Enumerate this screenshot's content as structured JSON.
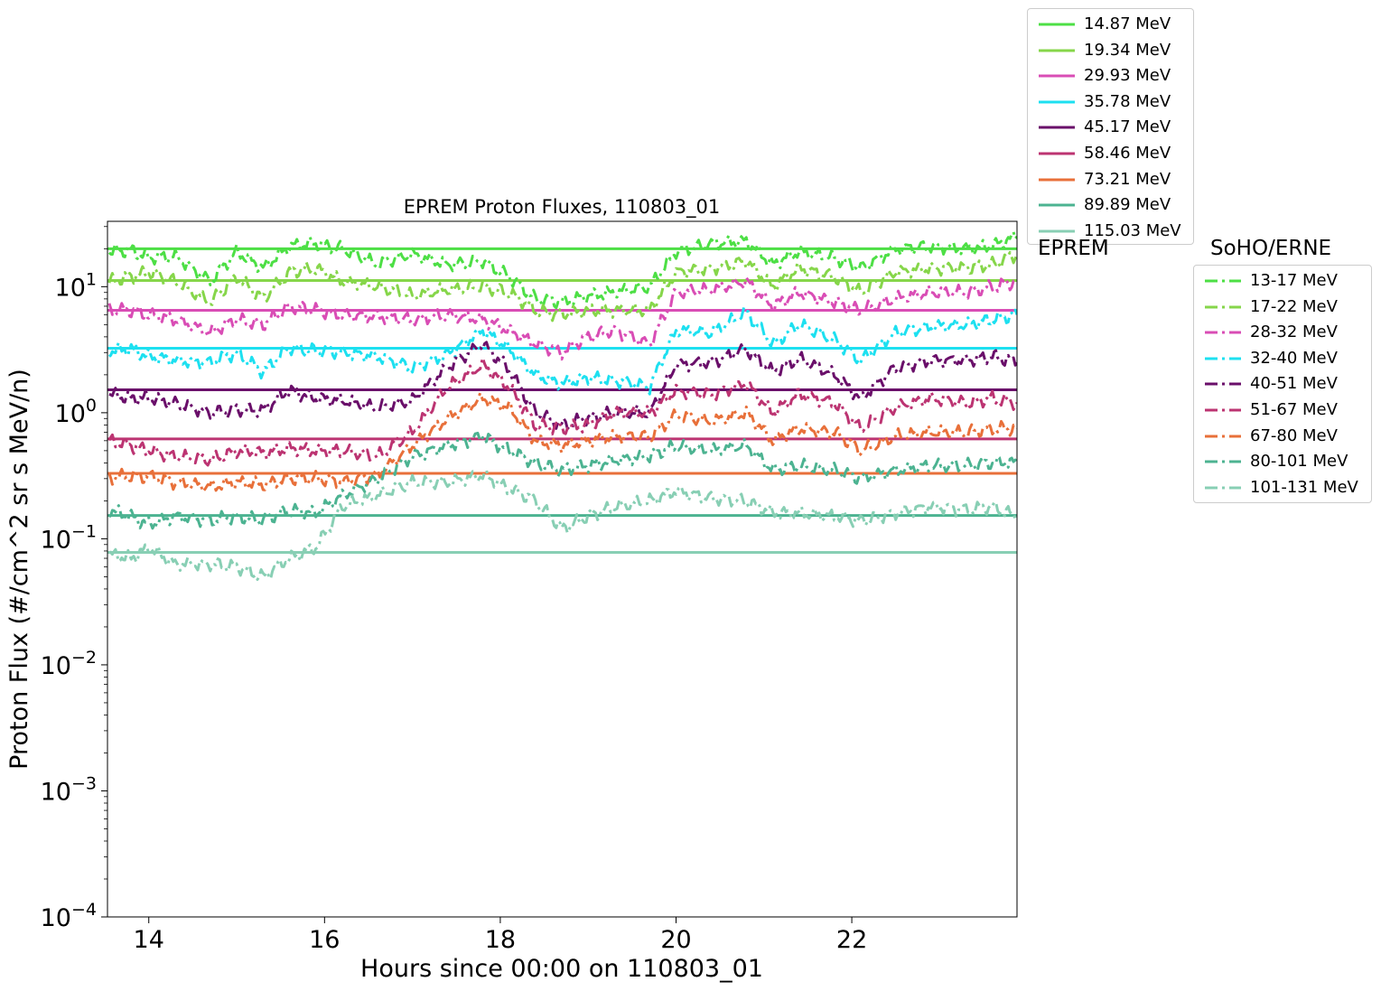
{
  "chart_data": {
    "type": "line",
    "title": "EPREM Proton Fluxes, 110803_01",
    "xlabel": "Hours since 00:00 on 110803_01",
    "ylabel": "Proton Flux (#/cm^2 sr s MeV/n)",
    "xlim": [
      13.53,
      23.88
    ],
    "ylim": [
      0.0001,
      33
    ],
    "yscale": "log",
    "grid": false,
    "x_ticks": [
      14,
      16,
      18,
      20,
      22
    ],
    "y_ticks": [
      {
        "value": 0.0001,
        "base": "10",
        "exp": "−4"
      },
      {
        "value": 0.001,
        "base": "10",
        "exp": "−3"
      },
      {
        "value": 0.01,
        "base": "10",
        "exp": "−2"
      },
      {
        "value": 0.1,
        "base": "10",
        "exp": "−1"
      },
      {
        "value": 1,
        "base": "10",
        "exp": "0"
      },
      {
        "value": 10,
        "base": "10",
        "exp": "1"
      }
    ],
    "eprem_legend_title": "EPREM",
    "erne_legend_title": "SoHO/ERNE",
    "eprem_series": [
      {
        "name": "14.87 MeV",
        "color": "#4ddf45",
        "value": 20.0
      },
      {
        "name": "19.34 MeV",
        "color": "#86d64a",
        "value": 11.2
      },
      {
        "name": "29.93 MeV",
        "color": "#d94db5",
        "value": 6.5
      },
      {
        "name": "35.78 MeV",
        "color": "#1de0f0",
        "value": 3.25
      },
      {
        "name": "45.17 MeV",
        "color": "#6a0f6a",
        "value": 1.52
      },
      {
        "name": "58.46 MeV",
        "color": "#bc3472",
        "value": 0.62
      },
      {
        "name": "73.21 MeV",
        "color": "#e8703a",
        "value": 0.33
      },
      {
        "name": "89.89 MeV",
        "color": "#4cb391",
        "value": 0.153
      },
      {
        "name": "115.03 MeV",
        "color": "#88cfb4",
        "value": 0.078
      }
    ],
    "erne_series": [
      {
        "name": "13-17 MeV",
        "color": "#4ddf45",
        "x": [
          13.55,
          13.8,
          14.0,
          14.3,
          14.7,
          15.0,
          15.3,
          15.6,
          15.9,
          16.2,
          16.6,
          17.0,
          17.4,
          17.8,
          18.1,
          18.4,
          18.7,
          19.0,
          19.3,
          19.7,
          20.0,
          20.4,
          20.8,
          21.1,
          21.4,
          21.8,
          22.1,
          22.5,
          22.9,
          23.3,
          23.6,
          23.88
        ],
        "y": [
          19,
          19.5,
          17,
          17.5,
          11,
          19,
          14,
          21,
          22,
          20,
          15,
          18,
          15,
          16,
          12,
          8,
          7.5,
          8.5,
          9,
          10,
          19,
          22,
          23,
          15,
          19,
          17,
          14,
          20,
          21,
          20,
          21,
          25
        ]
      },
      {
        "name": "17-22 MeV",
        "color": "#86d64a",
        "x": [
          13.55,
          13.8,
          14.0,
          14.3,
          14.7,
          15.0,
          15.3,
          15.6,
          15.9,
          16.2,
          16.6,
          17.0,
          17.4,
          17.8,
          18.1,
          18.4,
          18.7,
          19.0,
          19.3,
          19.7,
          20.0,
          20.4,
          20.8,
          21.1,
          21.4,
          21.8,
          22.1,
          22.5,
          22.9,
          23.3,
          23.6,
          23.88
        ],
        "y": [
          11,
          12,
          13,
          11,
          7.5,
          12,
          8,
          13,
          14,
          11,
          10,
          8.5,
          9.5,
          10,
          9,
          6.5,
          6,
          6.5,
          6.5,
          6.5,
          13,
          14,
          16,
          10,
          14,
          12,
          9,
          13,
          14,
          14,
          15,
          18
        ]
      },
      {
        "name": "28-32 MeV",
        "color": "#d94db5",
        "x": [
          13.55,
          13.8,
          14.0,
          14.3,
          14.7,
          15.0,
          15.3,
          15.6,
          15.9,
          16.2,
          16.6,
          17.0,
          17.4,
          17.8,
          18.1,
          18.4,
          18.7,
          19.0,
          19.3,
          19.7,
          20.0,
          20.4,
          20.8,
          21.1,
          21.4,
          21.8,
          22.1,
          22.5,
          22.9,
          23.3,
          23.6,
          23.88
        ],
        "y": [
          6.5,
          6.5,
          6,
          5.5,
          4.3,
          5.5,
          5,
          7,
          6.5,
          6,
          5.8,
          5.5,
          6,
          5.5,
          4.5,
          3.5,
          3,
          4,
          4.5,
          3.5,
          9,
          9.5,
          11,
          7,
          9,
          7.5,
          6.5,
          8,
          9,
          9,
          10,
          11
        ]
      },
      {
        "name": "32-40 MeV",
        "color": "#1de0f0",
        "x": [
          13.55,
          13.8,
          14.0,
          14.3,
          14.7,
          15.0,
          15.3,
          15.6,
          15.9,
          16.2,
          16.6,
          17.0,
          17.4,
          17.8,
          18.1,
          18.4,
          18.7,
          19.0,
          19.3,
          19.7,
          20.0,
          20.4,
          20.8,
          21.1,
          21.4,
          21.8,
          22.1,
          22.5,
          22.9,
          23.3,
          23.6,
          23.88
        ],
        "y": [
          3.1,
          3.2,
          2.8,
          2.6,
          2.5,
          3,
          2.1,
          3.3,
          3.1,
          3,
          2.8,
          2.3,
          2.9,
          4.5,
          3.2,
          2,
          1.7,
          1.9,
          1.8,
          1.6,
          4.5,
          4.3,
          6.3,
          3.5,
          5,
          3.8,
          2.6,
          4.3,
          4.8,
          5,
          5.5,
          6
        ]
      },
      {
        "name": "40-51 MeV",
        "color": "#6a0f6a",
        "x": [
          13.55,
          13.8,
          14.0,
          14.3,
          14.7,
          15.0,
          15.3,
          15.6,
          15.9,
          16.2,
          16.6,
          17.0,
          17.4,
          17.8,
          18.1,
          18.4,
          18.7,
          19.0,
          19.3,
          19.7,
          20.0,
          20.4,
          20.8,
          21.1,
          21.4,
          21.8,
          22.1,
          22.5,
          22.9,
          23.3,
          23.6,
          23.88
        ],
        "y": [
          1.4,
          1.3,
          1.3,
          1.2,
          1.0,
          1.05,
          1.05,
          1.5,
          1.3,
          1.25,
          1.1,
          1.25,
          2.3,
          3.5,
          2.2,
          1.0,
          0.8,
          0.9,
          1.0,
          1.0,
          2.4,
          2.5,
          3.2,
          2.1,
          2.7,
          2.0,
          1.3,
          2.3,
          2.6,
          2.6,
          2.8,
          2.5
        ]
      },
      {
        "name": "51-67 MeV",
        "color": "#bc3472",
        "x": [
          13.55,
          13.8,
          14.0,
          14.3,
          14.7,
          15.0,
          15.3,
          15.6,
          15.9,
          16.2,
          16.6,
          17.0,
          17.4,
          17.8,
          18.1,
          18.4,
          18.7,
          19.0,
          19.3,
          19.7,
          20.0,
          20.4,
          20.8,
          21.1,
          21.4,
          21.8,
          22.1,
          22.5,
          22.9,
          23.3,
          23.6,
          23.88
        ],
        "y": [
          0.6,
          0.55,
          0.5,
          0.45,
          0.42,
          0.5,
          0.48,
          0.52,
          0.5,
          0.5,
          0.45,
          0.7,
          1.6,
          2.4,
          1.6,
          0.8,
          0.75,
          0.8,
          1.0,
          1.0,
          1.5,
          1.4,
          1.7,
          1.0,
          1.4,
          1.2,
          0.75,
          1.1,
          1.3,
          1.2,
          1.3,
          1.2
        ]
      },
      {
        "name": "67-80 MeV",
        "color": "#e8703a",
        "x": [
          13.55,
          13.8,
          14.0,
          14.3,
          14.7,
          15.0,
          15.3,
          15.6,
          15.9,
          16.2,
          16.6,
          17.0,
          17.4,
          17.8,
          18.1,
          18.4,
          18.7,
          19.0,
          19.3,
          19.7,
          20.0,
          20.4,
          20.8,
          21.1,
          21.4,
          21.8,
          22.1,
          22.5,
          22.9,
          23.3,
          23.6,
          23.88
        ],
        "y": [
          0.3,
          0.32,
          0.31,
          0.28,
          0.26,
          0.28,
          0.27,
          0.3,
          0.3,
          0.28,
          0.32,
          0.55,
          0.9,
          1.3,
          1.1,
          0.6,
          0.55,
          0.6,
          0.65,
          0.65,
          0.95,
          0.85,
          1.0,
          0.6,
          0.75,
          0.7,
          0.5,
          0.65,
          0.7,
          0.7,
          0.75,
          0.75
        ]
      },
      {
        "name": "80-101 MeV",
        "color": "#4cb391",
        "x": [
          13.55,
          13.8,
          14.0,
          14.3,
          14.7,
          15.0,
          15.3,
          15.6,
          15.9,
          16.2,
          16.6,
          17.0,
          17.4,
          17.8,
          18.1,
          18.4,
          18.7,
          19.0,
          19.3,
          19.7,
          20.0,
          20.4,
          20.8,
          21.1,
          21.4,
          21.8,
          22.1,
          22.5,
          22.9,
          23.3,
          23.6,
          23.88
        ],
        "y": [
          0.17,
          0.15,
          0.13,
          0.15,
          0.14,
          0.15,
          0.14,
          0.17,
          0.16,
          0.22,
          0.3,
          0.45,
          0.55,
          0.65,
          0.5,
          0.4,
          0.35,
          0.38,
          0.42,
          0.45,
          0.55,
          0.5,
          0.55,
          0.35,
          0.38,
          0.35,
          0.3,
          0.35,
          0.38,
          0.38,
          0.4,
          0.4
        ]
      },
      {
        "name": "101-131 MeV",
        "color": "#88cfb4",
        "x": [
          13.55,
          13.8,
          14.0,
          14.3,
          14.7,
          15.0,
          15.3,
          15.6,
          15.9,
          16.2,
          16.6,
          17.0,
          17.4,
          17.8,
          18.1,
          18.4,
          18.7,
          19.0,
          19.3,
          19.7,
          20.0,
          20.4,
          20.8,
          21.1,
          21.4,
          21.8,
          22.1,
          22.5,
          22.9,
          23.3,
          23.6,
          23.88
        ],
        "y": [
          0.075,
          0.07,
          0.085,
          0.063,
          0.063,
          0.06,
          0.05,
          0.07,
          0.085,
          0.18,
          0.22,
          0.28,
          0.28,
          0.32,
          0.25,
          0.2,
          0.12,
          0.15,
          0.18,
          0.2,
          0.24,
          0.21,
          0.2,
          0.16,
          0.16,
          0.15,
          0.14,
          0.16,
          0.18,
          0.17,
          0.18,
          0.15
        ]
      }
    ]
  }
}
